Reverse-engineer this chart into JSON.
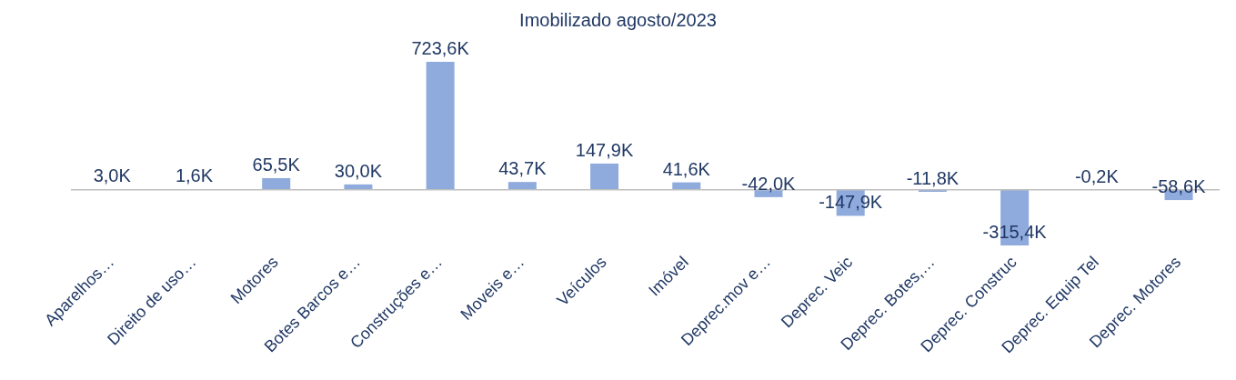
{
  "chart_data": {
    "type": "bar",
    "title": "Imobilizado agosto/2023",
    "categories": [
      "Aparelhos…",
      "Direito de uso…",
      "Motores",
      "Botes Barcos e…",
      "Construções e…",
      "Moveis e…",
      "Veículos",
      "Imóvel",
      "Deprec.mov e…",
      "Deprec. Veic",
      "Deprec. Botes,…",
      "Deprec. Construc",
      "Deprec. Equip Tel",
      "Deprec. Motores"
    ],
    "values": [
      3.0,
      1.6,
      65.5,
      30.0,
      723.6,
      43.7,
      147.9,
      41.6,
      -42.0,
      -147.9,
      -11.8,
      -315.4,
      -0.2,
      -58.6
    ],
    "value_labels": [
      "3,0K",
      "1,6K",
      "65,5K",
      "30,0K",
      "723,6K",
      "43,7K",
      "147,9K",
      "41,6K",
      "-42,0K",
      "-147,9K",
      "-11,8K",
      "-315,4K",
      "-0,2K",
      "-58,6K"
    ],
    "color": "#8faadc"
  }
}
